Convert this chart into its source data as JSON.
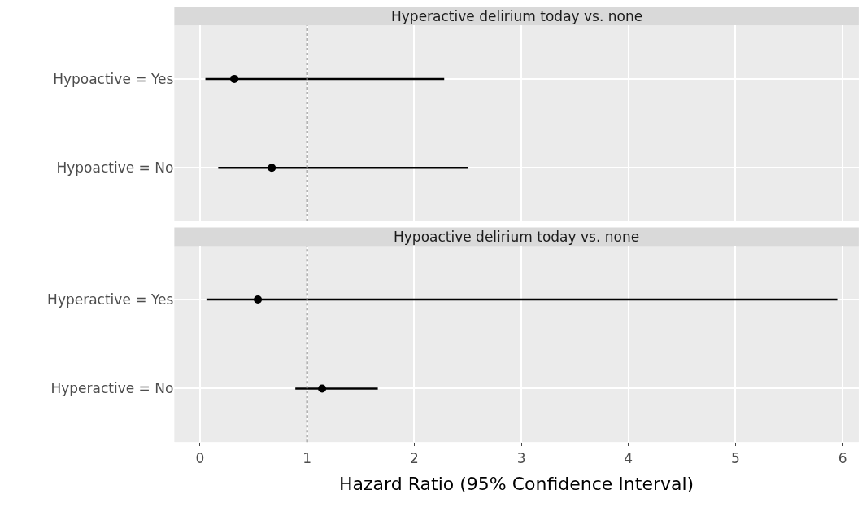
{
  "chart_data": [
    {
      "type": "scatter",
      "orientation": "horizontal",
      "title": "Hyperactive delirium today vs. none",
      "categories": [
        "Hypoactive = Yes",
        "Hypoactive = No"
      ],
      "values": [
        0.32,
        0.67
      ],
      "errors": [
        [
          0.05,
          2.28
        ],
        [
          0.17,
          2.5
        ]
      ],
      "color": "#000000",
      "marker": "circle",
      "xlim": [
        -0.24,
        6.15
      ],
      "xticks": [
        0,
        1,
        2,
        3,
        4,
        5,
        6
      ],
      "grid": true,
      "tick_labels": "y",
      "ref_lines": [
        {
          "axis": "x",
          "value": 1,
          "color": "#8c8c8c",
          "line_style": "dotted"
        }
      ]
    },
    {
      "type": "scatter",
      "orientation": "horizontal",
      "title": "Hypoactive delirium today vs. none",
      "xlabel": "Hazard Ratio (95% Confidence Interval)",
      "categories": [
        "Hyperactive = Yes",
        "Hyperactive = No"
      ],
      "values": [
        0.54,
        1.14
      ],
      "errors": [
        [
          0.06,
          5.95
        ],
        [
          0.89,
          1.66
        ]
      ],
      "color": "#000000",
      "marker": "circle",
      "xlim": [
        -0.24,
        6.15
      ],
      "xticks": [
        0,
        1,
        2,
        3,
        4,
        5,
        6
      ],
      "grid": true,
      "ref_lines": [
        {
          "axis": "x",
          "value": 1,
          "color": "#8c8c8c",
          "line_style": "dotted"
        }
      ]
    }
  ]
}
